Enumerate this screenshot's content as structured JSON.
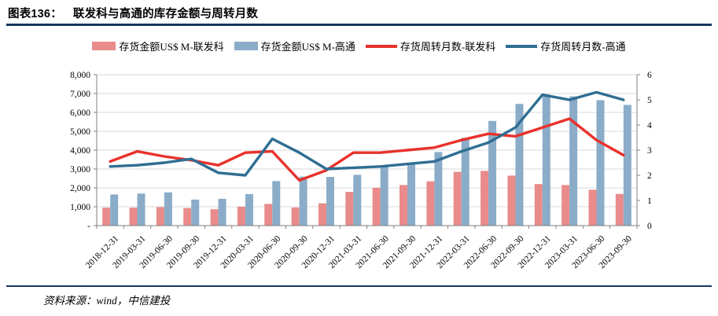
{
  "header": {
    "label": "图表136：",
    "title": "联发科与高通的库存金额与周转月数"
  },
  "footer": {
    "source": "资料来源：wind，中信建投"
  },
  "colors": {
    "mediatek_bar": "#E98B8B",
    "qualcomm_bar": "#8AACC8",
    "mediatek_line": "#E8312B",
    "qualcomm_line": "#2F6E93",
    "rule": "#17375E",
    "grid": "#D9D9D9",
    "axis": "#7F7F7F"
  },
  "chart_data": {
    "type": "combo-bar-line",
    "title": "联发科与高通的库存金额与周转月数",
    "grid": true,
    "legend_position": "top",
    "categories": [
      "2018-12-31",
      "2019-03-31",
      "2019-06-30",
      "2019-09-30",
      "2019-12-31",
      "2020-03-31",
      "2020-06-30",
      "2020-09-30",
      "2020-12-31",
      "2021-03-31",
      "2021-06-30",
      "2021-09-30",
      "2021-12-31",
      "2022-03-31",
      "2022-06-30",
      "2022-09-30",
      "2022-12-31",
      "2023-03-31",
      "2023-06-30",
      "2023-09-30"
    ],
    "series": [
      {
        "name": "存货金额US$ M-联发科",
        "type": "bar",
        "axis": "left",
        "color": "#E98B8B",
        "values": [
          950,
          950,
          980,
          930,
          870,
          1000,
          1150,
          960,
          1180,
          1790,
          2010,
          2150,
          2350,
          2850,
          2900,
          2650,
          2200,
          2150,
          1900,
          1680
        ]
      },
      {
        "name": "存货金额US$ M-高通",
        "type": "bar",
        "axis": "left",
        "color": "#8AACC8",
        "values": [
          1650,
          1700,
          1760,
          1380,
          1420,
          1670,
          2360,
          2600,
          2580,
          2690,
          3150,
          3280,
          3900,
          4650,
          5550,
          6450,
          6950,
          6850,
          6650,
          6400
        ]
      },
      {
        "name": "存货周转月数-联发科",
        "type": "line",
        "axis": "right",
        "color": "#E8312B",
        "values": [
          2.55,
          2.95,
          2.75,
          2.6,
          2.4,
          2.9,
          2.95,
          1.8,
          2.2,
          2.9,
          2.9,
          3.0,
          3.1,
          3.4,
          3.65,
          3.55,
          3.9,
          4.25,
          3.4,
          2.8
        ]
      },
      {
        "name": "存货周转月数-高通",
        "type": "line",
        "axis": "right",
        "color": "#2F6E93",
        "values": [
          2.35,
          2.4,
          2.5,
          2.65,
          2.1,
          2.0,
          3.45,
          2.9,
          2.25,
          2.3,
          2.35,
          2.45,
          2.55,
          2.95,
          3.3,
          3.9,
          5.2,
          5.0,
          5.3,
          5.0
        ]
      }
    ],
    "left_axis": {
      "min": 0,
      "max": 8000,
      "step": 1000,
      "tick_labels": [
        "-",
        "1,000",
        "2,000",
        "3,000",
        "4,000",
        "5,000",
        "6,000",
        "7,000",
        "8,000"
      ]
    },
    "right_axis": {
      "min": 0,
      "max": 6,
      "step": 1,
      "tick_labels": [
        "0",
        "1",
        "2",
        "3",
        "4",
        "5",
        "6"
      ]
    }
  }
}
